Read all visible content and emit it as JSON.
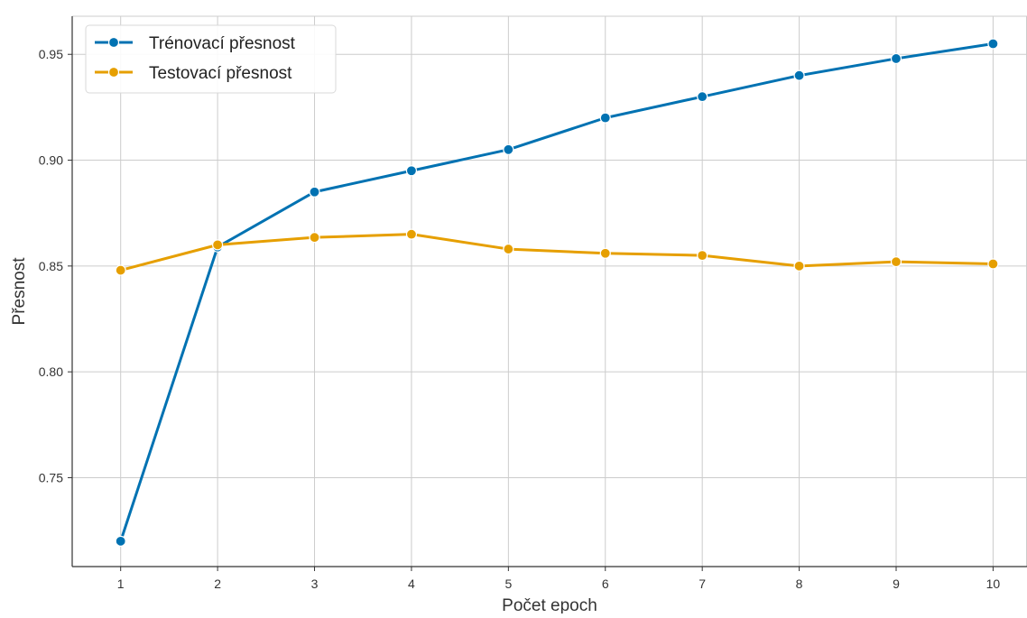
{
  "chart_data": {
    "type": "line",
    "title": "",
    "xlabel": "Počet epoch",
    "ylabel": "Přesnost",
    "x": [
      1,
      2,
      3,
      4,
      5,
      6,
      7,
      8,
      9,
      10
    ],
    "xticks": [
      "1",
      "2",
      "3",
      "4",
      "5",
      "6",
      "7",
      "8",
      "9",
      "10"
    ],
    "yticks": [
      "0.75",
      "0.80",
      "0.85",
      "0.90",
      "0.95"
    ],
    "ylim": [
      0.708,
      0.968
    ],
    "xlim": [
      0.5,
      10.35
    ],
    "grid": true,
    "legend_position": "top-left",
    "series": [
      {
        "name": "Trénovací přesnost",
        "color": "#0072B2",
        "values": [
          0.72,
          0.859,
          0.885,
          0.895,
          0.905,
          0.92,
          0.93,
          0.94,
          0.948,
          0.955
        ]
      },
      {
        "name": "Testovací přesnost",
        "color": "#E69F00",
        "values": [
          0.848,
          0.86,
          0.8635,
          0.865,
          0.858,
          0.856,
          0.855,
          0.85,
          0.852,
          0.851
        ]
      }
    ]
  }
}
